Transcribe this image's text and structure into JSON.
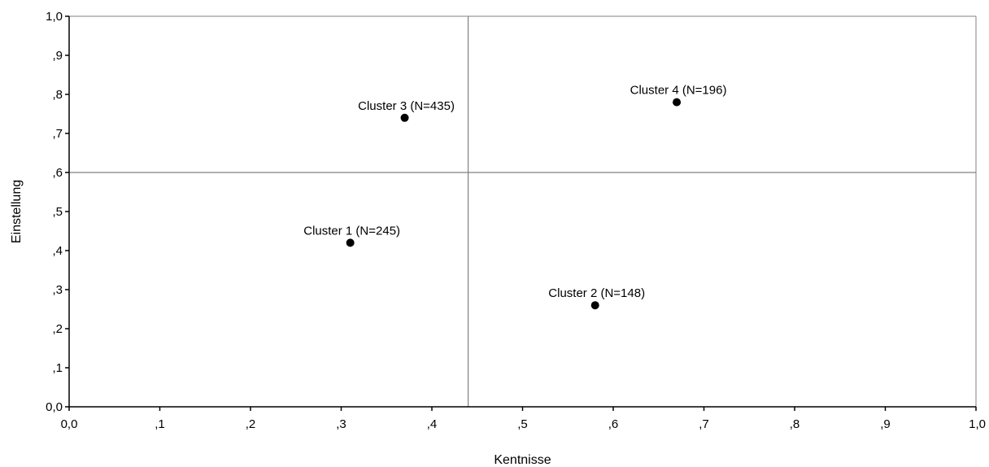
{
  "chart_data": {
    "type": "scatter",
    "title": "",
    "xlabel": "Kentnisse",
    "ylabel": "Einstellung",
    "xlim": [
      0,
      1
    ],
    "ylim": [
      0,
      1
    ],
    "grid": false,
    "x_ticks": [
      {
        "value": 0.0,
        "label": "0,0"
      },
      {
        "value": 0.1,
        "label": ",1"
      },
      {
        "value": 0.2,
        "label": ",2"
      },
      {
        "value": 0.3,
        "label": ",3"
      },
      {
        "value": 0.4,
        "label": ",4"
      },
      {
        "value": 0.5,
        "label": ",5"
      },
      {
        "value": 0.6,
        "label": ",6"
      },
      {
        "value": 0.7,
        "label": ",7"
      },
      {
        "value": 0.8,
        "label": ",8"
      },
      {
        "value": 0.9,
        "label": ",9"
      },
      {
        "value": 1.0,
        "label": "1,0"
      }
    ],
    "y_ticks": [
      {
        "value": 0.0,
        "label": "0,0"
      },
      {
        "value": 0.1,
        "label": ",1"
      },
      {
        "value": 0.2,
        "label": ",2"
      },
      {
        "value": 0.3,
        "label": ",3"
      },
      {
        "value": 0.4,
        "label": ",4"
      },
      {
        "value": 0.5,
        "label": ",5"
      },
      {
        "value": 0.6,
        "label": ",6"
      },
      {
        "value": 0.7,
        "label": ",7"
      },
      {
        "value": 0.8,
        "label": ",8"
      },
      {
        "value": 0.9,
        "label": ",9"
      },
      {
        "value": 1.0,
        "label": "1,0"
      }
    ],
    "reference_lines": {
      "x": 0.44,
      "y": 0.6
    },
    "points": [
      {
        "label": "Cluster 1 (N=245)",
        "x": 0.31,
        "y": 0.42
      },
      {
        "label": "Cluster 2 (N=148)",
        "x": 0.58,
        "y": 0.26
      },
      {
        "label": "Cluster 3 (N=435)",
        "x": 0.37,
        "y": 0.74
      },
      {
        "label": "Cluster 4 (N=196)",
        "x": 0.67,
        "y": 0.78
      }
    ],
    "colors": {
      "point": "#000000",
      "axis": "#000000",
      "reference_line": "#808080",
      "frame": "#808080"
    }
  }
}
